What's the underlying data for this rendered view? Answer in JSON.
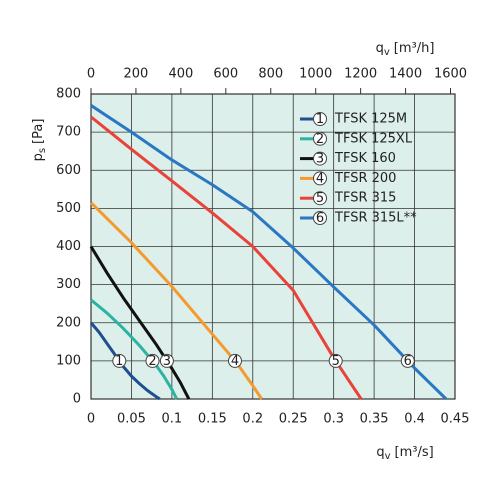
{
  "chart_data": {
    "type": "line",
    "x_label": {
      "main": "q",
      "sub": "v",
      "unit": "[m³/s]"
    },
    "x2_label": {
      "main": "q",
      "sub": "v",
      "unit": "[m³/h]"
    },
    "y_label": {
      "main": "p",
      "sub": "s",
      "unit": "[Pa]"
    },
    "xlim": [
      0,
      0.45
    ],
    "xticks": [
      0,
      0.05,
      0.1,
      0.15,
      0.2,
      0.25,
      0.3,
      0.35,
      0.4,
      0.45
    ],
    "x2lim": [
      0,
      1620
    ],
    "x2ticks": [
      0,
      200,
      400,
      600,
      800,
      1000,
      1200,
      1400,
      1600
    ],
    "ylim": [
      0,
      800
    ],
    "yticks": [
      0,
      100,
      200,
      300,
      400,
      500,
      600,
      700,
      800
    ],
    "grid": true,
    "series": [
      {
        "name": "TFSK 125M",
        "marker_label": "1",
        "color": "#1f4f8f",
        "x": [
          0,
          0.01,
          0.02,
          0.03,
          0.04,
          0.05,
          0.06,
          0.07,
          0.08,
          0.085
        ],
        "values": [
          200,
          175,
          145,
          115,
          85,
          60,
          40,
          22,
          7,
          0
        ]
      },
      {
        "name": "TFSK 125XL",
        "marker_label": "2",
        "color": "#2bb3a3",
        "x": [
          0,
          0.02,
          0.04,
          0.06,
          0.08,
          0.09,
          0.1,
          0.106
        ],
        "values": [
          260,
          225,
          185,
          140,
          90,
          60,
          25,
          0
        ]
      },
      {
        "name": "TFSK 160",
        "marker_label": "3",
        "color": "#111111",
        "x": [
          0,
          0.02,
          0.04,
          0.06,
          0.08,
          0.1,
          0.11,
          0.121
        ],
        "values": [
          400,
          330,
          265,
          205,
          145,
          80,
          45,
          0
        ]
      },
      {
        "name": "TFSR 200",
        "marker_label": "4",
        "color": "#f59a2e",
        "x": [
          0,
          0.05,
          0.1,
          0.15,
          0.18,
          0.2,
          0.211
        ],
        "values": [
          515,
          410,
          295,
          170,
          95,
          35,
          0
        ]
      },
      {
        "name": "TFSR 315",
        "marker_label": "5",
        "color": "#e8433a",
        "x": [
          0,
          0.05,
          0.1,
          0.15,
          0.2,
          0.25,
          0.3,
          0.334
        ],
        "values": [
          740,
          655,
          572,
          488,
          400,
          285,
          108,
          0
        ]
      },
      {
        "name": "TFSR 315L**",
        "marker_label": "6",
        "color": "#2a77c4",
        "x": [
          0,
          0.05,
          0.1,
          0.15,
          0.2,
          0.25,
          0.3,
          0.35,
          0.4,
          0.439
        ],
        "values": [
          770,
          700,
          627,
          562,
          491,
          396,
          294,
          194,
          81,
          0
        ]
      }
    ]
  }
}
